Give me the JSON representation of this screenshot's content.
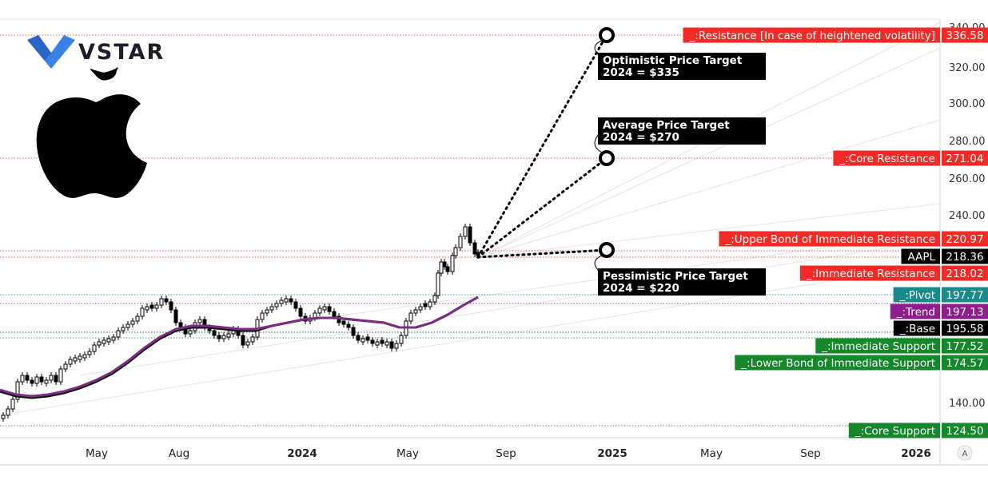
{
  "brand": {
    "name": "VSTAR"
  },
  "symbol": "AAPL",
  "colors": {
    "resistance": "#f22b26",
    "support": "#14882a",
    "pivot": "#1a8a8a",
    "trend": "#8e1d8e",
    "black": "#000000",
    "ma_black": "#111111",
    "ma_purple": "#7b2d82"
  },
  "chart_data": {
    "type": "candlestick",
    "y_ticks": [
      "140.00",
      "240.00",
      "260.00",
      "280.00",
      "300.00",
      "320.00",
      "340.00"
    ],
    "x_ticks": [
      {
        "label": "May",
        "bold": false
      },
      {
        "label": "Aug",
        "bold": false
      },
      {
        "label": "2024",
        "bold": true
      },
      {
        "label": "May",
        "bold": false
      },
      {
        "label": "Sep",
        "bold": false
      },
      {
        "label": "2025",
        "bold": true
      },
      {
        "label": "May",
        "bold": false
      },
      {
        "label": "Sep",
        "bold": false
      },
      {
        "label": "2026",
        "bold": true
      }
    ],
    "levels": [
      {
        "name": "_:Resistance [In case of heightened volatility]",
        "value": "336.58",
        "kind": "resistance"
      },
      {
        "name": "_:Core Resistance",
        "value": "271.04",
        "kind": "resistance"
      },
      {
        "name": "_:Upper Bond of Immediate Resistance",
        "value": "220.97",
        "kind": "resistance"
      },
      {
        "name": "AAPL",
        "value": "218.36",
        "kind": "black"
      },
      {
        "name": "_:Immediate Resistance",
        "value": "218.02",
        "kind": "resistance"
      },
      {
        "name": "_:Pivot",
        "value": "197.77",
        "kind": "pivot"
      },
      {
        "name": "_:Trend",
        "value": "197.13",
        "kind": "trend"
      },
      {
        "name": "_:Base",
        "value": "195.58",
        "kind": "black"
      },
      {
        "name": "_:Immediate Support",
        "value": "177.52",
        "kind": "support"
      },
      {
        "name": "_:Lower Bond of Immediate Support",
        "value": "174.57",
        "kind": "support"
      },
      {
        "name": "_:Core Support",
        "value": "124.50",
        "kind": "support"
      }
    ],
    "targets": [
      {
        "line1": "Optimistic Price Target",
        "line2": "2024 = $335",
        "price": 335
      },
      {
        "line1": "Average Price Target",
        "line2": "2024 = $270",
        "price": 270
      },
      {
        "line1": "Pessimistic Price Target",
        "line2": "2024 = $220",
        "price": 220
      }
    ],
    "axis_badge": "A"
  }
}
